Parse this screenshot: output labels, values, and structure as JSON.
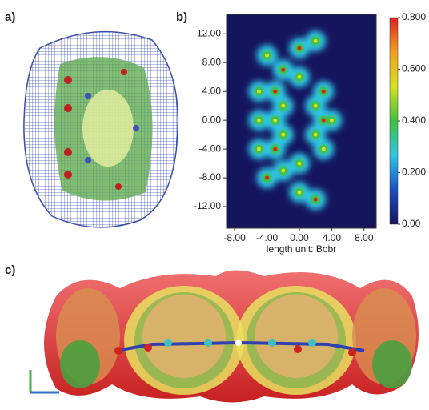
{
  "panel_labels": [
    "a)",
    "b)",
    "c)"
  ],
  "chart_data": {
    "type": "heatmap",
    "xlabel": "length unit: Bobr",
    "xlim": [
      -9,
      9.5
    ],
    "xticks": [
      {
        "value": -8,
        "label": "-8.00"
      },
      {
        "value": -4,
        "label": "-4.00"
      },
      {
        "value": 0,
        "label": "0.00"
      },
      {
        "value": 4,
        "label": "4.00"
      },
      {
        "value": 8,
        "label": "8.00"
      }
    ],
    "ylim": [
      -15,
      14.7
    ],
    "yticks": [
      {
        "value": 12,
        "label": "12.00"
      },
      {
        "value": 8,
        "label": "8.00"
      },
      {
        "value": 4,
        "label": "4.00"
      },
      {
        "value": 0,
        "label": "0.00"
      },
      {
        "value": -4,
        "label": "-4.00"
      },
      {
        "value": -8,
        "label": "-8.00"
      },
      {
        "value": -12,
        "label": "-12.00"
      }
    ],
    "clim": [
      0,
      0.8
    ],
    "cticks": [
      {
        "value": 0.8,
        "label": "0.800"
      },
      {
        "value": 0.6,
        "label": "0.600"
      },
      {
        "value": 0.4,
        "label": "0.400"
      },
      {
        "value": 0.2,
        "label": "0.200"
      },
      {
        "value": 0,
        "label": "0.00"
      }
    ],
    "colormap": [
      "#15155e",
      "#1d4fc4",
      "#2fc6e6",
      "#3fbf3f",
      "#d8e020",
      "#f0a020",
      "#e02020"
    ]
  }
}
